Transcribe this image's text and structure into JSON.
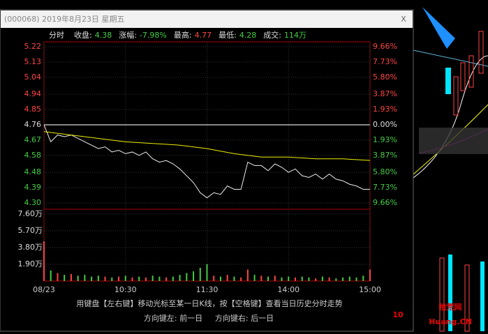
{
  "window": {
    "title": "(000068) 2019年8月23日 星期五",
    "close": "X"
  },
  "header": {
    "tab": "分时",
    "items": [
      {
        "label": "收盘:",
        "value": "4.38"
      },
      {
        "label": "涨幅:",
        "value": "-7.98%"
      },
      {
        "label": "最高:",
        "value": "4.77"
      },
      {
        "label": "最低:",
        "value": "4.28"
      },
      {
        "label": "成交:",
        "value": "114万"
      }
    ]
  },
  "price_chart": {
    "type": "line",
    "ylim": [
      4.3,
      5.22
    ],
    "prev_close": 4.76,
    "yticks": [
      {
        "value": 5.22,
        "label": "5.22"
      },
      {
        "value": 5.13,
        "label": "5.13"
      },
      {
        "value": 5.04,
        "label": "5.04"
      },
      {
        "value": 4.94,
        "label": "4.94"
      },
      {
        "value": 4.85,
        "label": "4.85"
      },
      {
        "value": 4.76,
        "label": "4.76"
      },
      {
        "value": 4.67,
        "label": "4.67"
      },
      {
        "value": 4.58,
        "label": "4.58"
      },
      {
        "value": 4.48,
        "label": "4.48"
      },
      {
        "value": 4.39,
        "label": "4.39"
      },
      {
        "value": 4.3,
        "label": "4.30"
      }
    ],
    "pct_labels": [
      "9.66%",
      "7.73%",
      "5.80%",
      "3.87%",
      "1.93%",
      "0.00%",
      "1.93%",
      "3.87%",
      "5.80%",
      "7.73%",
      "9.66%"
    ],
    "xlim": [
      0,
      240
    ],
    "xticks": [
      {
        "value": 0,
        "label": "08/23"
      },
      {
        "value": 60,
        "label": "10:30"
      },
      {
        "value": 120,
        "label": "11:30"
      },
      {
        "value": 180,
        "label": "14:00"
      },
      {
        "value": 240,
        "label": "15:00"
      }
    ],
    "x": [
      0,
      5,
      10,
      15,
      20,
      25,
      30,
      35,
      40,
      45,
      50,
      55,
      60,
      65,
      70,
      75,
      80,
      85,
      90,
      95,
      100,
      105,
      110,
      115,
      120,
      125,
      130,
      135,
      140,
      145,
      150,
      155,
      160,
      165,
      170,
      175,
      180,
      185,
      190,
      195,
      200,
      205,
      210,
      215,
      220,
      225,
      230,
      235,
      240
    ],
    "price": [
      4.76,
      4.66,
      4.7,
      4.69,
      4.7,
      4.68,
      4.66,
      4.64,
      4.62,
      4.63,
      4.6,
      4.61,
      4.59,
      4.6,
      4.58,
      4.6,
      4.56,
      4.54,
      4.55,
      4.53,
      4.5,
      4.46,
      4.42,
      4.36,
      4.33,
      4.36,
      4.35,
      4.4,
      4.38,
      4.38,
      4.54,
      4.52,
      4.52,
      4.49,
      4.53,
      4.51,
      4.48,
      4.5,
      4.46,
      4.45,
      4.47,
      4.44,
      4.47,
      4.44,
      4.43,
      4.41,
      4.4,
      4.38,
      4.38
    ],
    "avg_x": [
      0,
      20,
      40,
      60,
      80,
      100,
      120,
      140,
      160,
      180,
      200,
      220,
      240
    ],
    "avg": [
      4.72,
      4.7,
      4.68,
      4.66,
      4.65,
      4.64,
      4.62,
      4.59,
      4.57,
      4.57,
      4.56,
      4.56,
      4.55
    ]
  },
  "volume_chart": {
    "type": "bar",
    "ylim": [
      0,
      7.6
    ],
    "yticks": [
      {
        "value": 7.6,
        "label": "7.60万"
      },
      {
        "value": 5.7,
        "label": "5.70万"
      },
      {
        "value": 3.8,
        "label": "3.80万"
      },
      {
        "value": 1.9,
        "label": "1.90万"
      }
    ],
    "values": [
      4.5,
      1.2,
      0.9,
      0.7,
      0.8,
      0.6,
      0.7,
      0.5,
      0.6,
      0.5,
      0.4,
      0.5,
      0.6,
      0.4,
      0.5,
      0.4,
      0.6,
      0.5,
      0.4,
      0.5,
      0.7,
      0.9,
      1.1,
      1.5,
      1.9,
      0.6,
      0.5,
      0.7,
      0.5,
      0.4,
      1.3,
      0.7,
      0.6,
      0.5,
      0.6,
      0.4,
      0.5,
      0.4,
      0.5,
      0.4,
      0.3,
      0.5,
      0.4,
      0.3,
      0.4,
      0.5,
      0.4,
      0.6,
      1.3
    ]
  },
  "footer": {
    "line1": "用键盘【左右键】移动光标至某一日K线，按【空格键】查看当日历史分时走势",
    "line2a": "方向键左: 前一日",
    "line2b": "方向键右: 后一日"
  },
  "watermark": {
    "num": "10",
    "name": "拾荒网",
    "url": "Huang.CN"
  }
}
